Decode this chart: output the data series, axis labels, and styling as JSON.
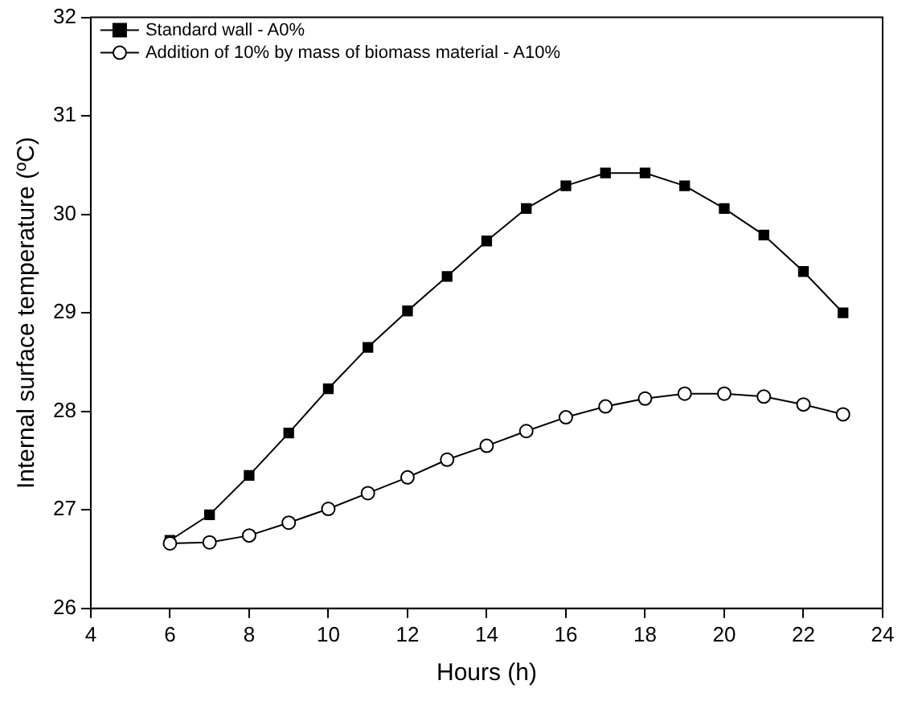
{
  "chart_data": {
    "type": "line",
    "xlabel": "Hours (h)",
    "ylabel": "Internal surface temperature (ºC)",
    "x": [
      6,
      7,
      8,
      9,
      10,
      11,
      12,
      13,
      14,
      15,
      16,
      17,
      18,
      19,
      20,
      21,
      22,
      23
    ],
    "series": [
      {
        "name": "Standard wall - A0%",
        "color": "#000000",
        "marker": "square",
        "values": [
          26.69,
          26.95,
          27.35,
          27.78,
          28.23,
          28.65,
          29.02,
          29.37,
          29.73,
          30.06,
          30.29,
          30.42,
          30.42,
          30.29,
          30.06,
          29.79,
          29.42,
          29.0
        ]
      },
      {
        "name": "Addition of 10% by mass of biomass material - A10%",
        "color": "#000000",
        "marker": "circle",
        "values": [
          26.66,
          26.67,
          26.74,
          26.87,
          27.01,
          27.17,
          27.33,
          27.51,
          27.65,
          27.8,
          27.94,
          28.05,
          28.13,
          28.18,
          28.18,
          28.15,
          28.07,
          27.97
        ]
      }
    ],
    "xlim": [
      4,
      24
    ],
    "xticks": [
      4,
      6,
      8,
      10,
      12,
      14,
      16,
      18,
      20,
      22,
      24
    ],
    "ylim": [
      26,
      32
    ],
    "yticks": [
      26,
      27,
      28,
      29,
      30,
      31,
      32
    ],
    "grid": false,
    "legend": "top left",
    "line_style": "solid"
  }
}
